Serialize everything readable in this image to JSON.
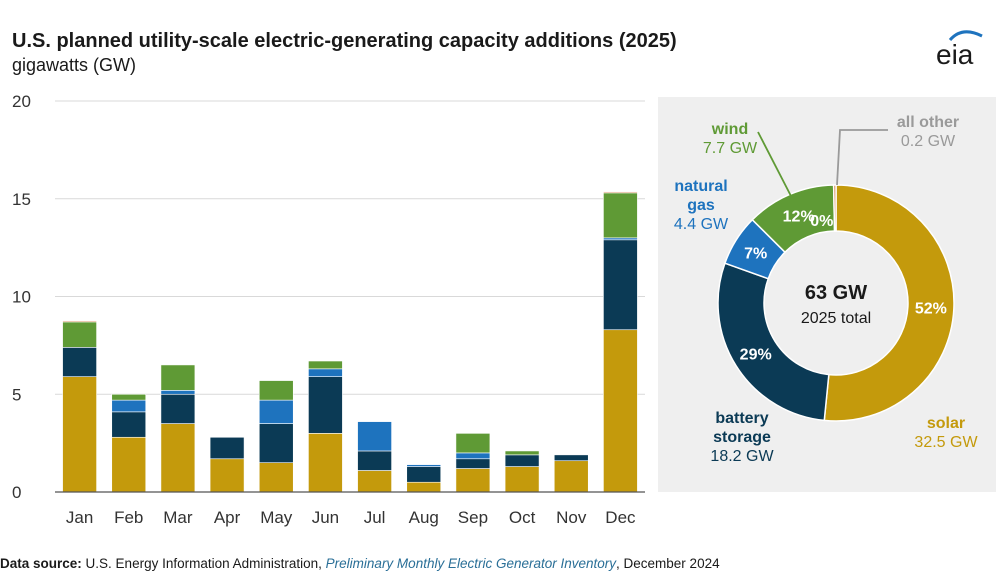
{
  "title": "U.S. planned utility-scale electric-generating capacity additions (2025)",
  "subtitle": "gigawatts (GW)",
  "logo_text": "eia",
  "source": {
    "label": "Data source:",
    "text1": "U.S. Energy Information Administration,",
    "italic": "Preliminary Monthly Electric Generator Inventory",
    "text2": ", December 2024"
  },
  "colors": {
    "solar": "#c49a0c",
    "battery": "#0b3a55",
    "gas": "#1e73be",
    "wind": "#5f9a35",
    "other": "#c96a2b",
    "panel": "#efefef"
  },
  "chart_data": [
    {
      "type": "bar",
      "stacked": true,
      "categories": [
        "Jan",
        "Feb",
        "Mar",
        "Apr",
        "May",
        "Jun",
        "Jul",
        "Aug",
        "Sep",
        "Oct",
        "Nov",
        "Dec"
      ],
      "ylim": [
        0,
        20
      ],
      "yticks": [
        0,
        5,
        10,
        15,
        20
      ],
      "grid": true,
      "series": [
        {
          "key": "solar",
          "values": [
            5.9,
            2.8,
            3.5,
            1.7,
            1.5,
            3.0,
            1.1,
            0.5,
            1.2,
            1.3,
            1.6,
            8.3
          ]
        },
        {
          "key": "battery",
          "values": [
            1.5,
            1.3,
            1.5,
            1.1,
            2.0,
            2.9,
            1.0,
            0.8,
            0.5,
            0.6,
            0.3,
            4.6
          ]
        },
        {
          "key": "gas",
          "values": [
            0.0,
            0.6,
            0.2,
            0.0,
            1.2,
            0.4,
            1.5,
            0.1,
            0.3,
            0.0,
            0.0,
            0.1
          ]
        },
        {
          "key": "wind",
          "values": [
            1.3,
            0.3,
            1.3,
            0.0,
            1.0,
            0.4,
            0.0,
            0.0,
            1.0,
            0.2,
            0.0,
            2.3
          ]
        },
        {
          "key": "other",
          "values": [
            0.05,
            0.0,
            0.0,
            0.0,
            0.0,
            0.0,
            0.0,
            0.0,
            0.0,
            0.0,
            0.0,
            0.05
          ]
        }
      ]
    },
    {
      "type": "pie",
      "donut": true,
      "center_value": "63 GW",
      "center_label": "2025 total",
      "slices": [
        {
          "key": "solar",
          "name": "solar",
          "value": 32.5,
          "unit": "32.5 GW",
          "pct": "52%"
        },
        {
          "key": "battery",
          "name": "battery storage",
          "value": 18.2,
          "unit": "18.2 GW",
          "pct": "29%"
        },
        {
          "key": "gas",
          "name": "natural gas",
          "value": 4.4,
          "unit": "4.4 GW",
          "pct": "7%"
        },
        {
          "key": "wind",
          "name": "wind",
          "value": 7.7,
          "unit": "7.7 GW",
          "pct": "12%"
        },
        {
          "key": "other",
          "name": "all other",
          "value": 0.2,
          "unit": "0.2 GW",
          "pct": "0%"
        }
      ]
    }
  ]
}
